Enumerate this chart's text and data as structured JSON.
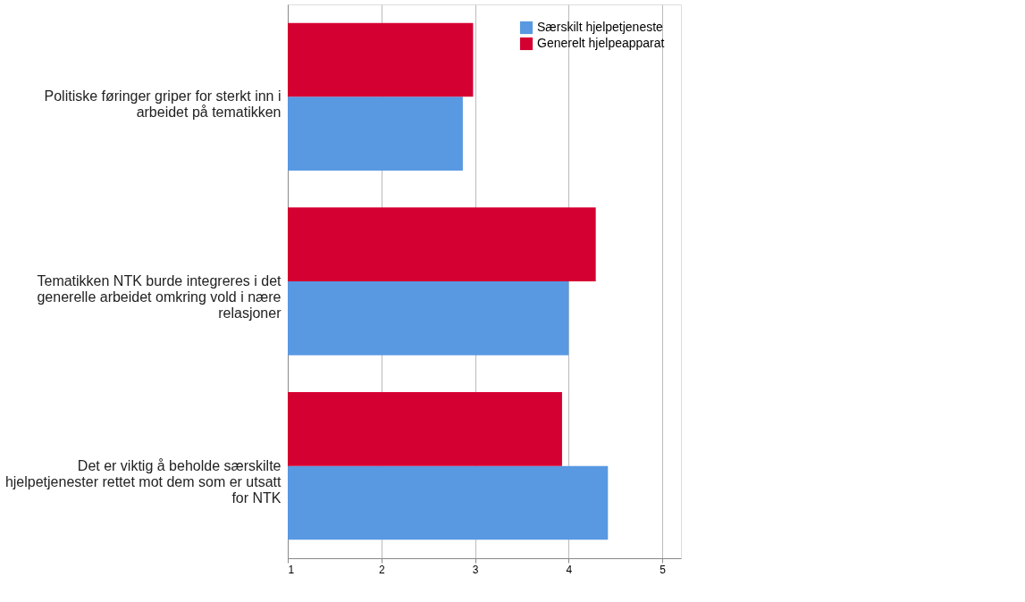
{
  "chart_data": {
    "type": "bar",
    "orientation": "horizontal",
    "categories": [
      "Politiske føringer griper for sterkt inn i arbeidet på tematikken",
      "Tematikken NTK burde integreres i det generelle arbeidet omkring vold i nære relasjoner",
      "Det er viktig å beholde særskilte hjelpetjenester rettet mot dem som er utsatt for NTK"
    ],
    "series": [
      {
        "name": "Særskilt hjelpetjeneste",
        "color": "#5899e2",
        "values": [
          2.87,
          4.0,
          4.42
        ]
      },
      {
        "name": "Generelt hjelpeapparat",
        "color": "#d50032",
        "values": [
          2.98,
          4.29,
          3.93
        ]
      }
    ],
    "xlim": [
      1,
      5.2
    ],
    "xticks": [
      1,
      2,
      3,
      4,
      5
    ],
    "grid": "x",
    "legend": "top right"
  }
}
